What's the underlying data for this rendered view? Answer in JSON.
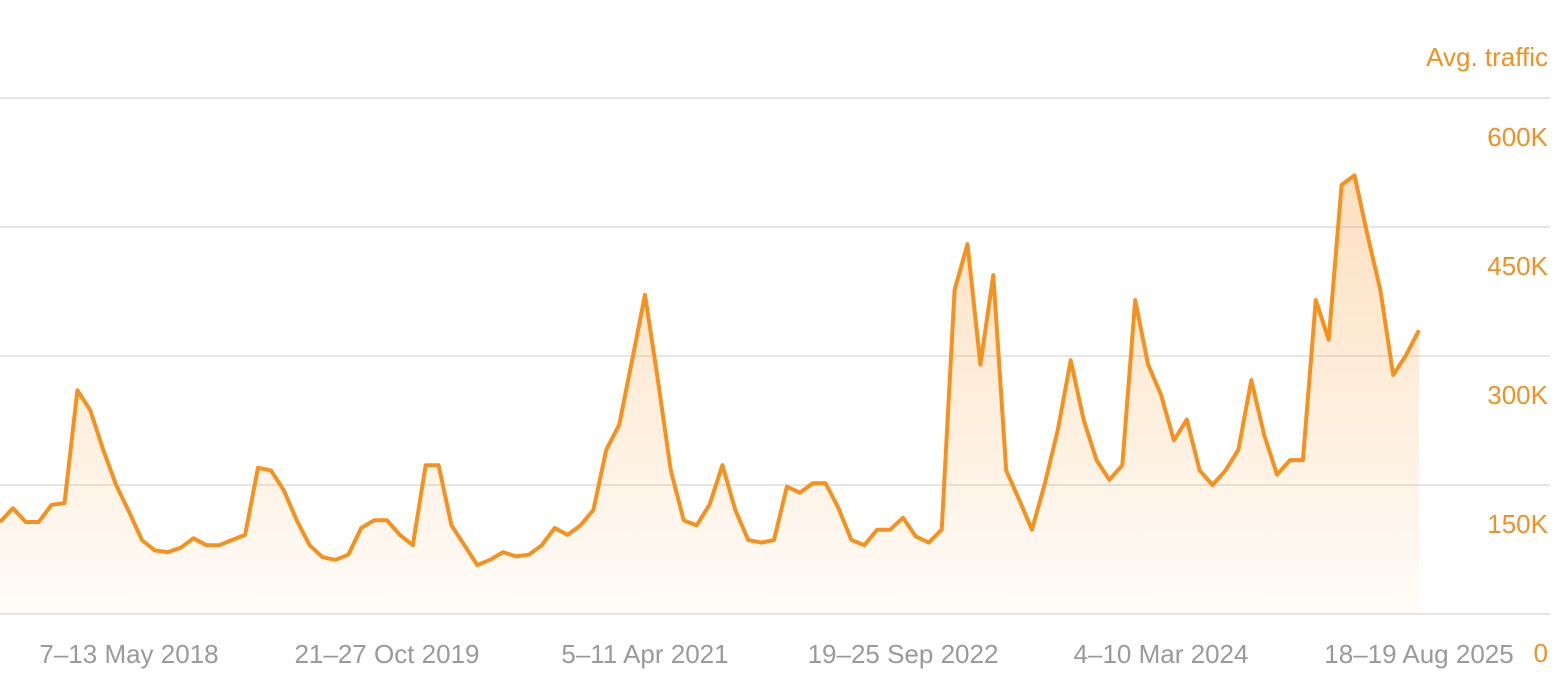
{
  "chart_data": {
    "type": "line",
    "y_axis_label": "Avg. traffic",
    "color": "#f7911d",
    "grid": true,
    "ylim": [
      0,
      600000
    ],
    "yticks": [
      0,
      {
        "value": 150000,
        "label": "150K"
      },
      {
        "value": 300000,
        "label": "300K"
      },
      {
        "value": 450000,
        "label": "450K"
      },
      {
        "value": 600000,
        "label": "600K"
      }
    ],
    "categories": [
      null,
      null,
      null,
      null,
      null,
      null,
      null,
      null,
      null,
      null,
      "7–13 May 2018",
      null,
      null,
      null,
      null,
      null,
      null,
      null,
      null,
      null,
      null,
      null,
      null,
      null,
      null,
      null,
      null,
      null,
      null,
      null,
      "21–27 Oct 2019",
      null,
      null,
      null,
      null,
      null,
      null,
      null,
      null,
      null,
      null,
      null,
      null,
      null,
      null,
      null,
      null,
      null,
      null,
      null,
      "5–11 Apr 2021",
      null,
      null,
      null,
      null,
      null,
      null,
      null,
      null,
      null,
      null,
      null,
      null,
      null,
      null,
      null,
      null,
      null,
      null,
      null,
      "19–25 Sep 2022",
      null,
      null,
      null,
      null,
      null,
      null,
      null,
      null,
      null,
      null,
      null,
      null,
      null,
      null,
      null,
      null,
      null,
      null,
      null,
      "4–10 Mar 2024",
      null,
      null,
      null,
      null,
      null,
      null,
      null,
      null,
      null,
      null,
      null,
      null,
      null,
      null,
      null,
      null,
      null,
      null,
      null,
      "18–19 Aug 2025"
    ],
    "values": [
      107000,
      123000,
      107000,
      107000,
      127000,
      129000,
      260000,
      237000,
      191000,
      150000,
      119000,
      86000,
      74000,
      72000,
      77000,
      88000,
      80000,
      80000,
      86000,
      92000,
      170000,
      167000,
      144000,
      109000,
      80000,
      66000,
      63000,
      69000,
      100000,
      109000,
      109000,
      92000,
      80000,
      173000,
      173000,
      103000,
      80000,
      57000,
      63000,
      72000,
      67000,
      69000,
      80000,
      100000,
      92000,
      103000,
      121000,
      191000,
      220000,
      295000,
      371000,
      272000,
      167000,
      109000,
      103000,
      127000,
      173000,
      121000,
      86000,
      83000,
      86000,
      148000,
      141000,
      152000,
      152000,
      123000,
      86000,
      80000,
      98000,
      98000,
      112000,
      90000,
      83000,
      98000,
      377000,
      430000,
      290000,
      394000,
      167000,
      133000,
      98000,
      152000,
      214000,
      295000,
      226000,
      179000,
      156000,
      173000,
      365000,
      290000,
      255000,
      202000,
      226000,
      167000,
      150000,
      167000,
      191000,
      272000,
      208000,
      162000,
      179000,
      179000,
      365000,
      319000,
      499000,
      510000,
      441000,
      377000,
      278000,
      301000,
      330000
    ]
  }
}
